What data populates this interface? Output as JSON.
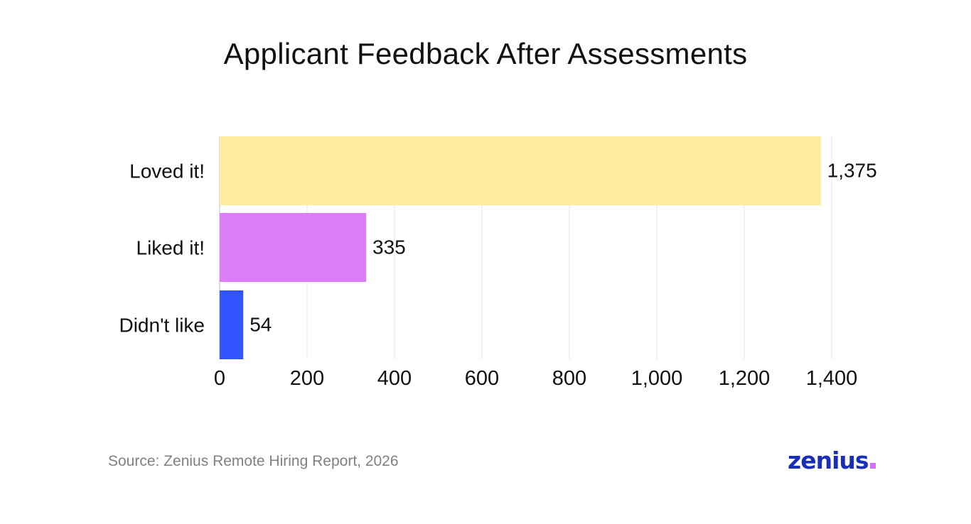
{
  "title": "Applicant Feedback After Assessments",
  "source": "Source: Zenius Remote Hiring Report, 2026",
  "brand": {
    "name": "zenius",
    "text_color": "#1a2fb8",
    "dot_color": "#d86cf2"
  },
  "chart_data": {
    "type": "bar",
    "orientation": "horizontal",
    "title": "Applicant Feedback After Assessments",
    "categories": [
      "Loved it!",
      "Liked it!",
      "Didn't like"
    ],
    "values": [
      1375,
      335,
      54
    ],
    "value_labels": [
      "1,375",
      "335",
      "54"
    ],
    "colors": [
      "#feeb9e",
      "#dc7df8",
      "#3355ff"
    ],
    "xlim": [
      0,
      1400
    ],
    "xticks": [
      0,
      200,
      400,
      600,
      800,
      1000,
      1200,
      1400
    ],
    "xtick_labels": [
      "0",
      "200",
      "400",
      "600",
      "800",
      "1,000",
      "1,200",
      "1,400"
    ],
    "xlabel": "",
    "ylabel": "",
    "grid": "vertical",
    "legend": "none"
  }
}
